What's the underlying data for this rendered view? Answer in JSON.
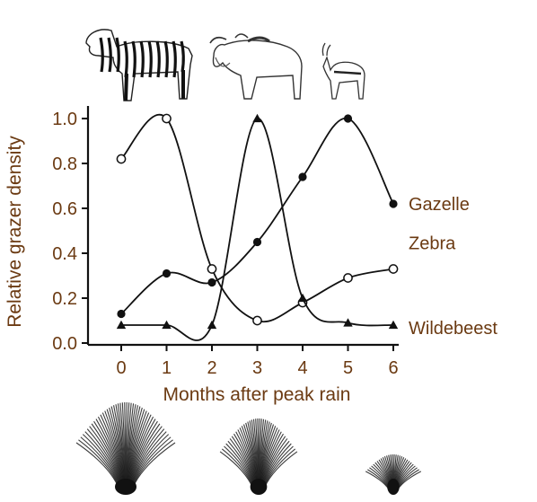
{
  "colors": {
    "text": "#6b3a12",
    "line": "#111111",
    "axis": "#111111"
  },
  "icons": {
    "animals": [
      "zebra-icon",
      "wildebeest-icon",
      "gazelle-icon"
    ],
    "grasses": [
      "tall-grass-icon",
      "medium-grass-icon",
      "short-grass-icon"
    ]
  },
  "chart_data": {
    "type": "line",
    "title": "",
    "xlabel": "Months after peak rain",
    "ylabel": "Relative grazer density",
    "xlim": [
      0,
      6
    ],
    "ylim": [
      0,
      1.0
    ],
    "x_ticks": [
      "0",
      "1",
      "2",
      "3",
      "4",
      "5",
      "6"
    ],
    "y_ticks": [
      "0.0",
      "0.2",
      "0.4",
      "0.6",
      "0.8",
      "1.0"
    ],
    "grid": false,
    "legend": "labels at line ends (right)",
    "x": [
      0,
      1,
      2,
      3,
      4,
      5,
      6
    ],
    "series": [
      {
        "name": "Gazelle",
        "marker": "filled-circle",
        "values": [
          0.13,
          0.31,
          0.27,
          0.45,
          0.74,
          1.0,
          0.62
        ]
      },
      {
        "name": "Zebra",
        "marker": "open-circle",
        "values": [
          0.82,
          1.0,
          0.33,
          0.1,
          0.18,
          0.29,
          0.33
        ]
      },
      {
        "name": "Wildebeest",
        "marker": "filled-triangle",
        "values": [
          0.08,
          0.08,
          0.08,
          1.0,
          0.2,
          0.09,
          0.08
        ]
      }
    ]
  }
}
